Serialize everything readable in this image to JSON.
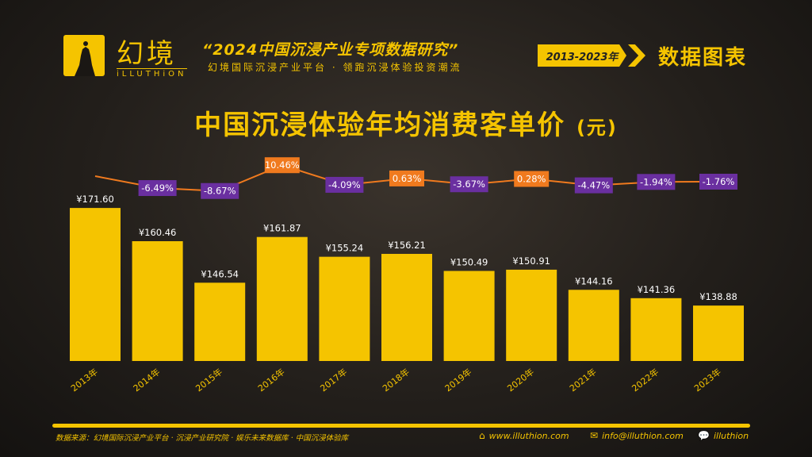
{
  "brand": {
    "name_cn": "幻境",
    "name_en": "iLLUTHiON"
  },
  "header": {
    "report_title": "“2024中国沉浸产业专项数据研究”",
    "tagline": "幻境国际沉浸产业平台 · 领跑沉浸体验投资潮流",
    "year_range": "2013-2023年",
    "section": "数据图表"
  },
  "colors": {
    "accent": "#f5c400",
    "negative": "#6a2fa0",
    "positive": "#f07a1e",
    "line": "#f07a1e"
  },
  "chart_data": {
    "type": "bar",
    "title": "中国沉浸体验年均消费客单价",
    "unit": "(元)",
    "categories": [
      "2013年",
      "2014年",
      "2015年",
      "2016年",
      "2017年",
      "2018年",
      "2019年",
      "2020年",
      "2021年",
      "2022年",
      "2023年"
    ],
    "values": [
      171.6,
      160.46,
      146.54,
      161.87,
      155.24,
      156.21,
      150.49,
      150.91,
      144.16,
      141.36,
      138.88
    ],
    "value_labels": [
      "¥171.60",
      "¥160.46",
      "¥146.54",
      "¥161.87",
      "¥155.24",
      "¥156.21",
      "¥150.49",
      "¥150.91",
      "¥144.16",
      "¥141.36",
      "¥138.88"
    ],
    "growth": [
      null,
      -6.49,
      -8.67,
      10.46,
      -4.09,
      0.63,
      -3.67,
      0.28,
      -4.47,
      -1.94,
      -1.76
    ],
    "growth_labels": [
      "",
      "-6.49%",
      "-8.67%",
      "10.46%",
      "-4.09%",
      "0.63%",
      "-3.67%",
      "0.28%",
      "-4.47%",
      "-1.94%",
      "-1.76%"
    ],
    "ylim": [
      120,
      180
    ],
    "grid": false
  },
  "footer": {
    "source": "数据来源：幻境国际沉浸产业平台 · 沉浸产业研究院 · 娱乐未来数据库 · 中国沉浸体验库",
    "website": "www.illuthion.com",
    "email": "info@illuthion.com",
    "wechat": "illuthion"
  }
}
